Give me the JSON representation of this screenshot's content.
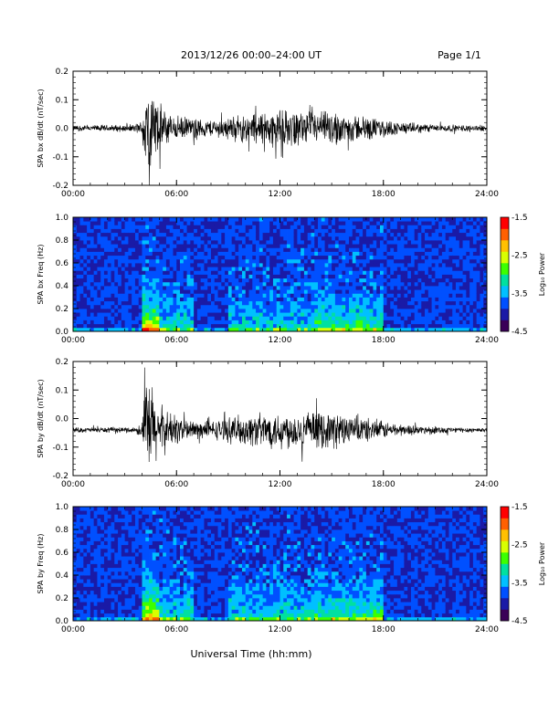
{
  "header": {
    "title": "2013/12/26  00:00–24:00 UT",
    "page": "Page 1/1"
  },
  "xlabel": "Universal Time (hh:mm)",
  "chart_data": [
    {
      "type": "line",
      "ylabel": "SPA bx dB/dt (nT/sec)",
      "xlim": [
        0,
        24
      ],
      "ylim": [
        -0.2,
        0.2
      ],
      "xticks": [
        "00:00",
        "06:00",
        "12:00",
        "18:00",
        "24:00"
      ],
      "yticks": [
        "-0.2",
        "-0.1",
        "0.0",
        "0.1",
        "0.2"
      ],
      "envelope": {
        "hours": [
          0,
          3.5,
          4.0,
          4.2,
          4.5,
          5.0,
          5.5,
          6.0,
          7.0,
          8.0,
          9.0,
          10.0,
          11.0,
          12.0,
          13.0,
          14.0,
          15.0,
          16.0,
          17.0,
          18.0,
          19.0,
          20.0,
          22.0,
          24.0
        ],
        "amplitude": [
          0.012,
          0.015,
          0.03,
          0.2,
          0.18,
          0.1,
          0.07,
          0.05,
          0.04,
          0.035,
          0.045,
          0.06,
          0.07,
          0.075,
          0.07,
          0.065,
          0.07,
          0.06,
          0.05,
          0.035,
          0.025,
          0.02,
          0.014,
          0.012
        ]
      },
      "baseline": 0.0
    },
    {
      "type": "heatmap",
      "ylabel": "SPA bx Freq (Hz)",
      "xlim": [
        0,
        24
      ],
      "ylim": [
        0.0,
        1.0
      ],
      "xticks": [
        "00:00",
        "06:00",
        "12:00",
        "18:00",
        "24:00"
      ],
      "yticks": [
        "0.0",
        "0.2",
        "0.4",
        "0.6",
        "0.8",
        "1.0"
      ],
      "colorbar": {
        "label": "Log₁₀ Power",
        "range": [
          -4.5,
          -1.5
        ],
        "ticks": [
          "-1.5",
          "-2.5",
          "-3.5",
          "-4.5"
        ]
      },
      "colormap": [
        "#3a0058",
        "#1a1aa6",
        "#0050ff",
        "#00c0ff",
        "#00e0a0",
        "#3cff00",
        "#d8ff00",
        "#ffc000",
        "#ff6000",
        "#ff0000"
      ],
      "activity_bands": [
        [
          4.0,
          5.0,
          0.9
        ],
        [
          5.0,
          7.0,
          0.4
        ],
        [
          9.0,
          14.0,
          0.35
        ],
        [
          14.0,
          18.0,
          0.55
        ]
      ]
    },
    {
      "type": "line",
      "ylabel": "SPA by dB/dt (nT/sec)",
      "xlim": [
        0,
        24
      ],
      "ylim": [
        -0.2,
        0.2
      ],
      "xticks": [
        "00:00",
        "06:00",
        "12:00",
        "18:00",
        "24:00"
      ],
      "yticks": [
        "-0.2",
        "-0.1",
        "0.0",
        "0.1",
        "0.2"
      ],
      "envelope": {
        "hours": [
          0,
          3.5,
          4.0,
          4.2,
          4.5,
          5.0,
          5.5,
          6.0,
          7.0,
          8.0,
          9.0,
          10.0,
          11.0,
          12.0,
          13.0,
          14.0,
          15.0,
          16.0,
          17.0,
          18.0,
          19.0,
          20.0,
          22.0,
          24.0
        ],
        "amplitude": [
          0.01,
          0.012,
          0.03,
          0.2,
          0.2,
          0.11,
          0.08,
          0.06,
          0.04,
          0.035,
          0.05,
          0.065,
          0.07,
          0.075,
          0.075,
          0.07,
          0.075,
          0.065,
          0.05,
          0.035,
          0.025,
          0.018,
          0.012,
          0.01
        ]
      },
      "baseline": -0.04
    },
    {
      "type": "heatmap",
      "ylabel": "SPA by Freq (Hz)",
      "xlim": [
        0,
        24
      ],
      "ylim": [
        0.0,
        1.0
      ],
      "xticks": [
        "00:00",
        "06:00",
        "12:00",
        "18:00",
        "24:00"
      ],
      "yticks": [
        "0.0",
        "0.2",
        "0.4",
        "0.6",
        "0.8",
        "1.0"
      ],
      "colorbar": {
        "label": "Log₁₀ Power",
        "range": [
          -4.5,
          -1.5
        ],
        "ticks": [
          "-1.5",
          "-2.5",
          "-3.5",
          "-4.5"
        ]
      },
      "colormap": [
        "#3a0058",
        "#1a1aa6",
        "#0050ff",
        "#00c0ff",
        "#00e0a0",
        "#3cff00",
        "#d8ff00",
        "#ffc000",
        "#ff6000",
        "#ff0000"
      ],
      "activity_bands": [
        [
          4.0,
          5.0,
          0.9
        ],
        [
          5.0,
          7.0,
          0.4
        ],
        [
          9.0,
          14.0,
          0.4
        ],
        [
          14.0,
          18.0,
          0.55
        ]
      ]
    }
  ]
}
